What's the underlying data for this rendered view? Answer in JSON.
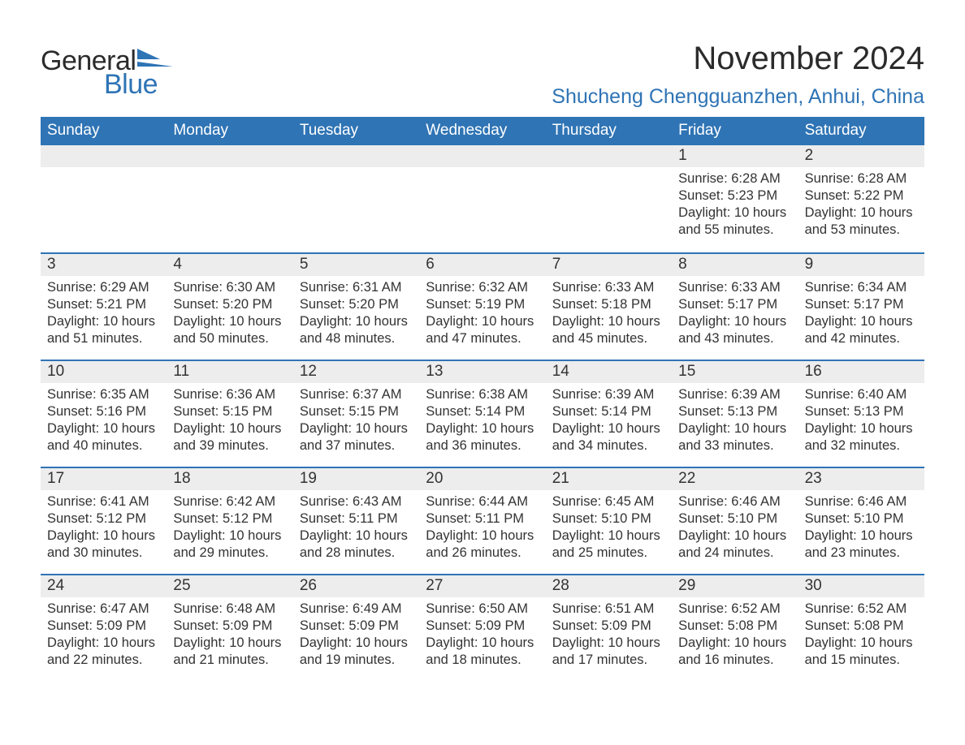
{
  "logo": {
    "text1": "General",
    "text2": "Blue",
    "color_text1": "#2b2b2b",
    "color_text2": "#2f74b5",
    "flag_color": "#2f74b5"
  },
  "header": {
    "month_title": "November 2024",
    "location": "Shucheng Chengguanzhen, Anhui, China"
  },
  "colors": {
    "header_bg": "#2f74b5",
    "header_text": "#ffffff",
    "daynum_bg": "#ededed",
    "daynum_border": "#2f74b5",
    "body_text": "#333333",
    "background": "#ffffff"
  },
  "fonts": {
    "month_title_size": 40,
    "location_size": 25,
    "weekday_size": 19,
    "daynum_size": 19,
    "cell_size": 16.5
  },
  "calendar": {
    "weekdays": [
      "Sunday",
      "Monday",
      "Tuesday",
      "Wednesday",
      "Thursday",
      "Friday",
      "Saturday"
    ],
    "leading_blanks": 5,
    "days": [
      {
        "n": "1",
        "sunrise": "Sunrise: 6:28 AM",
        "sunset": "Sunset: 5:23 PM",
        "day1": "Daylight: 10 hours",
        "day2": "and 55 minutes."
      },
      {
        "n": "2",
        "sunrise": "Sunrise: 6:28 AM",
        "sunset": "Sunset: 5:22 PM",
        "day1": "Daylight: 10 hours",
        "day2": "and 53 minutes."
      },
      {
        "n": "3",
        "sunrise": "Sunrise: 6:29 AM",
        "sunset": "Sunset: 5:21 PM",
        "day1": "Daylight: 10 hours",
        "day2": "and 51 minutes."
      },
      {
        "n": "4",
        "sunrise": "Sunrise: 6:30 AM",
        "sunset": "Sunset: 5:20 PM",
        "day1": "Daylight: 10 hours",
        "day2": "and 50 minutes."
      },
      {
        "n": "5",
        "sunrise": "Sunrise: 6:31 AM",
        "sunset": "Sunset: 5:20 PM",
        "day1": "Daylight: 10 hours",
        "day2": "and 48 minutes."
      },
      {
        "n": "6",
        "sunrise": "Sunrise: 6:32 AM",
        "sunset": "Sunset: 5:19 PM",
        "day1": "Daylight: 10 hours",
        "day2": "and 47 minutes."
      },
      {
        "n": "7",
        "sunrise": "Sunrise: 6:33 AM",
        "sunset": "Sunset: 5:18 PM",
        "day1": "Daylight: 10 hours",
        "day2": "and 45 minutes."
      },
      {
        "n": "8",
        "sunrise": "Sunrise: 6:33 AM",
        "sunset": "Sunset: 5:17 PM",
        "day1": "Daylight: 10 hours",
        "day2": "and 43 minutes."
      },
      {
        "n": "9",
        "sunrise": "Sunrise: 6:34 AM",
        "sunset": "Sunset: 5:17 PM",
        "day1": "Daylight: 10 hours",
        "day2": "and 42 minutes."
      },
      {
        "n": "10",
        "sunrise": "Sunrise: 6:35 AM",
        "sunset": "Sunset: 5:16 PM",
        "day1": "Daylight: 10 hours",
        "day2": "and 40 minutes."
      },
      {
        "n": "11",
        "sunrise": "Sunrise: 6:36 AM",
        "sunset": "Sunset: 5:15 PM",
        "day1": "Daylight: 10 hours",
        "day2": "and 39 minutes."
      },
      {
        "n": "12",
        "sunrise": "Sunrise: 6:37 AM",
        "sunset": "Sunset: 5:15 PM",
        "day1": "Daylight: 10 hours",
        "day2": "and 37 minutes."
      },
      {
        "n": "13",
        "sunrise": "Sunrise: 6:38 AM",
        "sunset": "Sunset: 5:14 PM",
        "day1": "Daylight: 10 hours",
        "day2": "and 36 minutes."
      },
      {
        "n": "14",
        "sunrise": "Sunrise: 6:39 AM",
        "sunset": "Sunset: 5:14 PM",
        "day1": "Daylight: 10 hours",
        "day2": "and 34 minutes."
      },
      {
        "n": "15",
        "sunrise": "Sunrise: 6:39 AM",
        "sunset": "Sunset: 5:13 PM",
        "day1": "Daylight: 10 hours",
        "day2": "and 33 minutes."
      },
      {
        "n": "16",
        "sunrise": "Sunrise: 6:40 AM",
        "sunset": "Sunset: 5:13 PM",
        "day1": "Daylight: 10 hours",
        "day2": "and 32 minutes."
      },
      {
        "n": "17",
        "sunrise": "Sunrise: 6:41 AM",
        "sunset": "Sunset: 5:12 PM",
        "day1": "Daylight: 10 hours",
        "day2": "and 30 minutes."
      },
      {
        "n": "18",
        "sunrise": "Sunrise: 6:42 AM",
        "sunset": "Sunset: 5:12 PM",
        "day1": "Daylight: 10 hours",
        "day2": "and 29 minutes."
      },
      {
        "n": "19",
        "sunrise": "Sunrise: 6:43 AM",
        "sunset": "Sunset: 5:11 PM",
        "day1": "Daylight: 10 hours",
        "day2": "and 28 minutes."
      },
      {
        "n": "20",
        "sunrise": "Sunrise: 6:44 AM",
        "sunset": "Sunset: 5:11 PM",
        "day1": "Daylight: 10 hours",
        "day2": "and 26 minutes."
      },
      {
        "n": "21",
        "sunrise": "Sunrise: 6:45 AM",
        "sunset": "Sunset: 5:10 PM",
        "day1": "Daylight: 10 hours",
        "day2": "and 25 minutes."
      },
      {
        "n": "22",
        "sunrise": "Sunrise: 6:46 AM",
        "sunset": "Sunset: 5:10 PM",
        "day1": "Daylight: 10 hours",
        "day2": "and 24 minutes."
      },
      {
        "n": "23",
        "sunrise": "Sunrise: 6:46 AM",
        "sunset": "Sunset: 5:10 PM",
        "day1": "Daylight: 10 hours",
        "day2": "and 23 minutes."
      },
      {
        "n": "24",
        "sunrise": "Sunrise: 6:47 AM",
        "sunset": "Sunset: 5:09 PM",
        "day1": "Daylight: 10 hours",
        "day2": "and 22 minutes."
      },
      {
        "n": "25",
        "sunrise": "Sunrise: 6:48 AM",
        "sunset": "Sunset: 5:09 PM",
        "day1": "Daylight: 10 hours",
        "day2": "and 21 minutes."
      },
      {
        "n": "26",
        "sunrise": "Sunrise: 6:49 AM",
        "sunset": "Sunset: 5:09 PM",
        "day1": "Daylight: 10 hours",
        "day2": "and 19 minutes."
      },
      {
        "n": "27",
        "sunrise": "Sunrise: 6:50 AM",
        "sunset": "Sunset: 5:09 PM",
        "day1": "Daylight: 10 hours",
        "day2": "and 18 minutes."
      },
      {
        "n": "28",
        "sunrise": "Sunrise: 6:51 AM",
        "sunset": "Sunset: 5:09 PM",
        "day1": "Daylight: 10 hours",
        "day2": "and 17 minutes."
      },
      {
        "n": "29",
        "sunrise": "Sunrise: 6:52 AM",
        "sunset": "Sunset: 5:08 PM",
        "day1": "Daylight: 10 hours",
        "day2": "and 16 minutes."
      },
      {
        "n": "30",
        "sunrise": "Sunrise: 6:52 AM",
        "sunset": "Sunset: 5:08 PM",
        "day1": "Daylight: 10 hours",
        "day2": "and 15 minutes."
      }
    ]
  }
}
